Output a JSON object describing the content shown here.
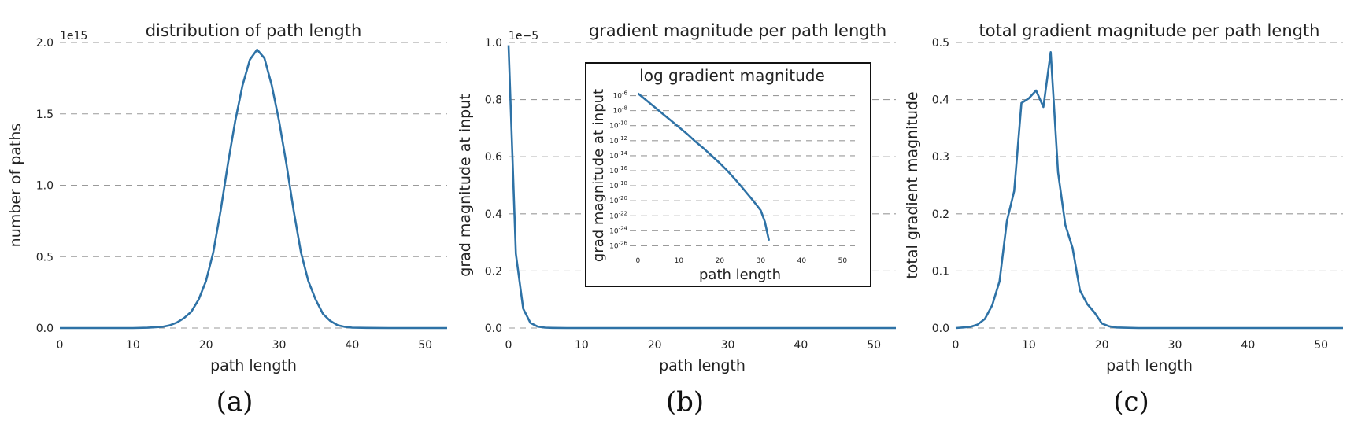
{
  "colors": {
    "line": "#2e72a6",
    "grid": "#9a9a9a",
    "text": "#222222",
    "inset_border": "#111111"
  },
  "captions": [
    "(a)",
    "(b)",
    "(c)"
  ],
  "chart_data": [
    {
      "type": "line",
      "title": "distribution of path length",
      "xlabel": "path length",
      "ylabel": "number of paths",
      "y_offset_label": "1e15",
      "xlim": [
        0,
        53
      ],
      "ylim": [
        0,
        2.0
      ],
      "xticks": [
        0,
        10,
        20,
        30,
        40,
        50
      ],
      "yticks": [
        0.0,
        0.5,
        1.0,
        1.5,
        2.0
      ],
      "ytick_labels": [
        "0.0",
        "0.5",
        "1.0",
        "1.5",
        "2.0"
      ],
      "grid": "horizontal-dashed",
      "x": [
        0,
        5,
        10,
        12,
        14,
        15,
        16,
        17,
        18,
        19,
        20,
        21,
        22,
        23,
        24,
        25,
        26,
        27,
        28,
        29,
        30,
        31,
        32,
        33,
        34,
        35,
        36,
        37,
        38,
        39,
        40,
        42,
        45,
        50,
        53
      ],
      "y": [
        0,
        0,
        0,
        0.002,
        0.008,
        0.018,
        0.038,
        0.07,
        0.115,
        0.2,
        0.33,
        0.53,
        0.82,
        1.15,
        1.45,
        1.7,
        1.88,
        1.95,
        1.89,
        1.7,
        1.45,
        1.15,
        0.82,
        0.53,
        0.33,
        0.2,
        0.1,
        0.05,
        0.02,
        0.008,
        0.003,
        0.001,
        0,
        0,
        0
      ]
    },
    {
      "type": "line",
      "title": "gradient magnitude per path length",
      "xlabel": "path length",
      "ylabel": "grad magnitude at input",
      "y_offset_label": "1e−5",
      "xlim": [
        0,
        53
      ],
      "ylim": [
        0,
        1.0
      ],
      "xticks": [
        0,
        10,
        20,
        30,
        40,
        50
      ],
      "yticks": [
        0.0,
        0.2,
        0.4,
        0.6,
        0.8,
        1.0
      ],
      "ytick_labels": [
        "0.0",
        "0.2",
        "0.4",
        "0.6",
        "0.8",
        "1.0"
      ],
      "grid": "horizontal-dashed",
      "x": [
        0,
        1,
        2,
        3,
        4,
        5,
        6,
        8,
        10,
        20,
        30,
        40,
        53
      ],
      "y": [
        0.99,
        0.26,
        0.068,
        0.018,
        0.005,
        0.0015,
        0.0005,
        0.0001,
        0,
        0,
        0,
        0,
        0
      ],
      "inset": {
        "type": "line",
        "log_y": true,
        "title": "log gradient magnitude",
        "xlabel": "path length",
        "ylabel": "grad magnitude at input",
        "xlim": [
          -2,
          53
        ],
        "xticks": [
          0,
          10,
          20,
          30,
          40,
          50
        ],
        "ytick_exponents": [
          -6,
          -8,
          -10,
          -12,
          -14,
          -16,
          -18,
          -20,
          -22,
          -24,
          -26
        ],
        "ytick_base": "10",
        "ylim_exp": [
          -27,
          -5
        ],
        "x": [
          0,
          2,
          4,
          6,
          8,
          10,
          12,
          14,
          16,
          18,
          20,
          22,
          24,
          26,
          28,
          30,
          31,
          32
        ],
        "y_exp": [
          -5.7,
          -6.6,
          -7.5,
          -8.4,
          -9.3,
          -10.2,
          -11.1,
          -12.1,
          -13.0,
          -14.0,
          -15.0,
          -16.1,
          -17.3,
          -18.6,
          -19.9,
          -21.3,
          -22.8,
          -25.3
        ]
      }
    },
    {
      "type": "line",
      "title": "total gradient magnitude per path length",
      "xlabel": "path length",
      "ylabel": "total gradient magnitude",
      "xlim": [
        0,
        53
      ],
      "ylim": [
        0,
        0.5
      ],
      "xticks": [
        0,
        10,
        20,
        30,
        40,
        50
      ],
      "yticks": [
        0.0,
        0.1,
        0.2,
        0.3,
        0.4,
        0.5
      ],
      "ytick_labels": [
        "0.0",
        "0.1",
        "0.2",
        "0.3",
        "0.4",
        "0.5"
      ],
      "grid": "horizontal-dashed",
      "x": [
        0,
        1,
        2,
        3,
        4,
        5,
        6,
        7,
        8,
        9,
        10,
        11,
        12,
        13,
        14,
        15,
        16,
        17,
        18,
        19,
        20,
        21,
        22,
        23,
        25,
        30,
        40,
        53
      ],
      "y": [
        0,
        0.001,
        0.002,
        0.006,
        0.016,
        0.04,
        0.082,
        0.187,
        0.24,
        0.394,
        0.402,
        0.416,
        0.387,
        0.483,
        0.273,
        0.181,
        0.14,
        0.066,
        0.042,
        0.027,
        0.008,
        0.003,
        0.001,
        0.0005,
        0,
        0,
        0,
        0
      ]
    }
  ]
}
